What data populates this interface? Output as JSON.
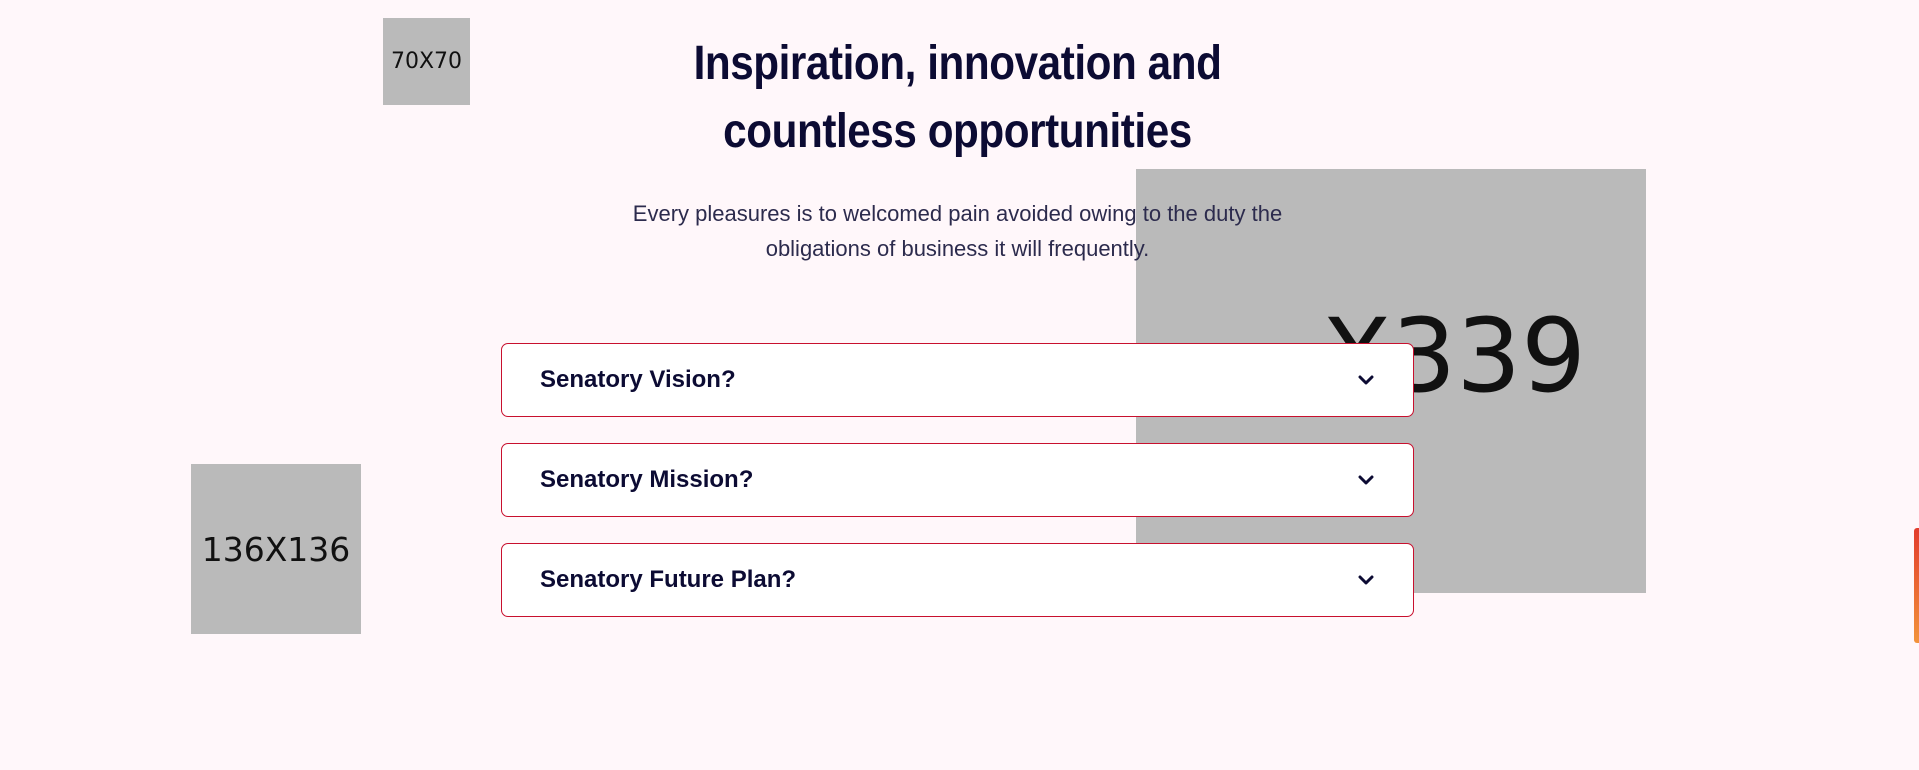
{
  "placeholders": {
    "small": "70X70",
    "medium": "136X136",
    "large": "X339"
  },
  "section": {
    "heading_line1": "Inspiration, innovation and",
    "heading_line2": "countless opportunities",
    "subtext_line1": "Every pleasures is to welcomed pain avoided owing to the duty the",
    "subtext_line2": "obligations of business it will frequently."
  },
  "accordion": {
    "items": [
      {
        "title": "Senatory Vision?",
        "icon": "chevron-down-icon"
      },
      {
        "title": "Senatory Mission?",
        "icon": "chevron-down-icon"
      },
      {
        "title": "Senatory Future Plan?",
        "icon": "chevron-down-icon"
      }
    ]
  },
  "colors": {
    "background": "#fff7fa",
    "heading": "#0c0b33",
    "accent_border": "#c8102e",
    "placeholder": "#bababa"
  }
}
